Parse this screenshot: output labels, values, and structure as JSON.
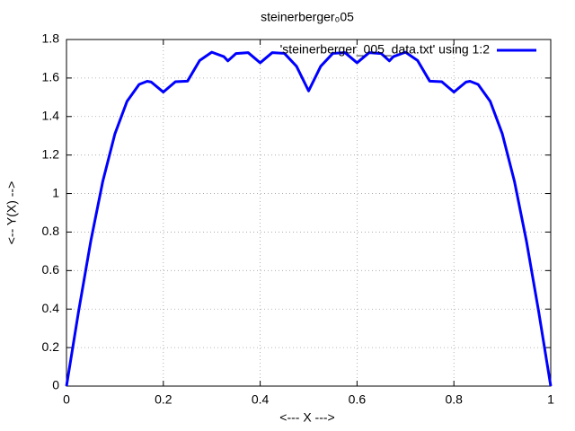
{
  "chart_data": {
    "type": "line",
    "title": "steinerberger₀05",
    "x_label": "<--- X --->",
    "y_label": "<-- Y(X) -->",
    "xlim": [
      0,
      1
    ],
    "ylim": [
      0,
      1.8
    ],
    "xticks": [
      0,
      0.2,
      0.4,
      0.6,
      0.8,
      1
    ],
    "yticks": [
      0,
      0.2,
      0.4,
      0.6,
      0.8,
      1,
      1.2,
      1.4,
      1.6,
      1.8
    ],
    "grid": true,
    "legend": "top-right",
    "x": [
      0,
      0.025,
      0.05,
      0.075,
      0.1,
      0.125,
      0.15,
      0.1667,
      0.175,
      0.2,
      0.225,
      0.25,
      0.275,
      0.3,
      0.325,
      0.3333,
      0.35,
      0.375,
      0.4,
      0.425,
      0.45,
      0.475,
      0.5,
      0.525,
      0.55,
      0.575,
      0.6,
      0.625,
      0.65,
      0.6667,
      0.675,
      0.7,
      0.725,
      0.75,
      0.775,
      0.8,
      0.825,
      0.8333,
      0.85,
      0.875,
      0.9,
      0.925,
      0.95,
      0.975,
      1
    ],
    "series": [
      {
        "name": "'steinerberger_005_data.txt' using 1:2",
        "color": "#0000ff",
        "values": [
          0,
          0.388,
          0.751,
          1.064,
          1.31,
          1.479,
          1.567,
          1.583,
          1.579,
          1.527,
          1.581,
          1.584,
          1.691,
          1.734,
          1.711,
          1.689,
          1.727,
          1.732,
          1.679,
          1.732,
          1.728,
          1.661,
          1.533,
          1.661,
          1.728,
          1.732,
          1.679,
          1.732,
          1.727,
          1.689,
          1.711,
          1.734,
          1.691,
          1.584,
          1.581,
          1.527,
          1.579,
          1.583,
          1.567,
          1.479,
          1.31,
          1.064,
          0.751,
          0.388,
          0
        ]
      }
    ]
  }
}
